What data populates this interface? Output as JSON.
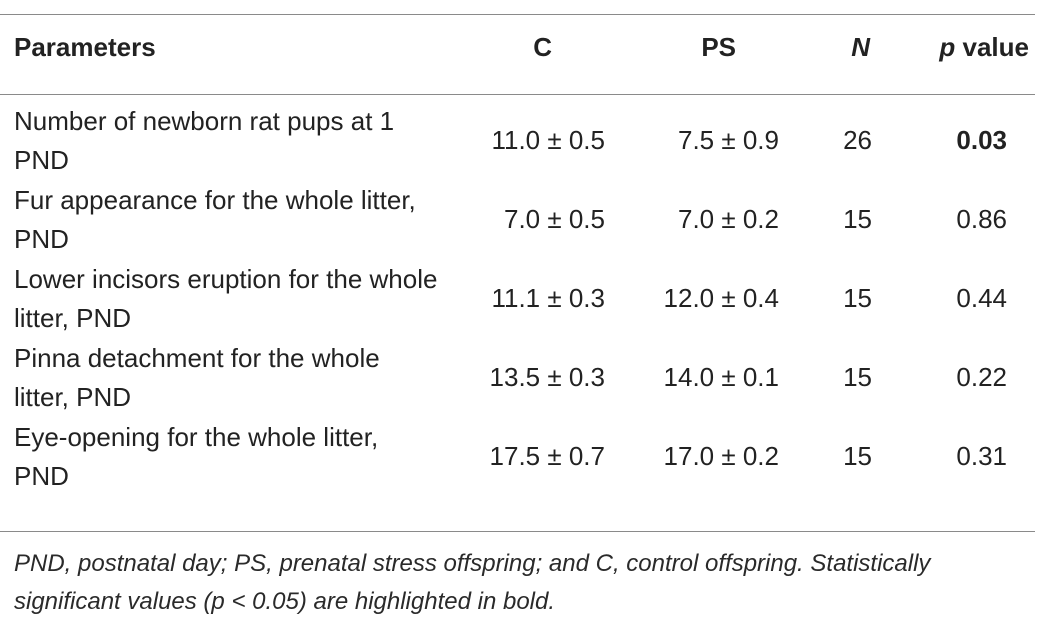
{
  "table": {
    "headers": {
      "parameters": "Parameters",
      "c": "C",
      "ps": "PS",
      "n": "N",
      "p_italic": "p",
      "p_rest": " value"
    },
    "rows": [
      {
        "parameter": "Number of newborn rat pups at 1 PND",
        "c": "11.0 ± 0.5",
        "ps": "7.5 ± 0.9",
        "n": "26",
        "p": "0.03",
        "significant": true
      },
      {
        "parameter": "Fur appearance for the whole litter, PND",
        "c": "7.0 ± 0.5",
        "ps": "7.0 ± 0.2",
        "n": "15",
        "p": "0.86",
        "significant": false
      },
      {
        "parameter": "Lower incisors eruption for the whole litter, PND",
        "c": "11.1 ± 0.3",
        "ps": "12.0 ± 0.4",
        "n": "15",
        "p": "0.44",
        "significant": false
      },
      {
        "parameter": "Pinna detachment for the whole litter, PND",
        "c": "13.5 ± 0.3",
        "ps": "14.0 ± 0.1",
        "n": "15",
        "p": "0.22",
        "significant": false
      },
      {
        "parameter": "Eye-opening for the whole litter, PND",
        "c": "17.5 ± 0.7",
        "ps": "17.0 ± 0.2",
        "n": "15",
        "p": "0.31",
        "significant": false
      }
    ]
  },
  "footnote": "PND, postnatal day; PS, prenatal stress offspring; and C, control offspring. Statistically significant values (p < 0.05) are highlighted in bold."
}
